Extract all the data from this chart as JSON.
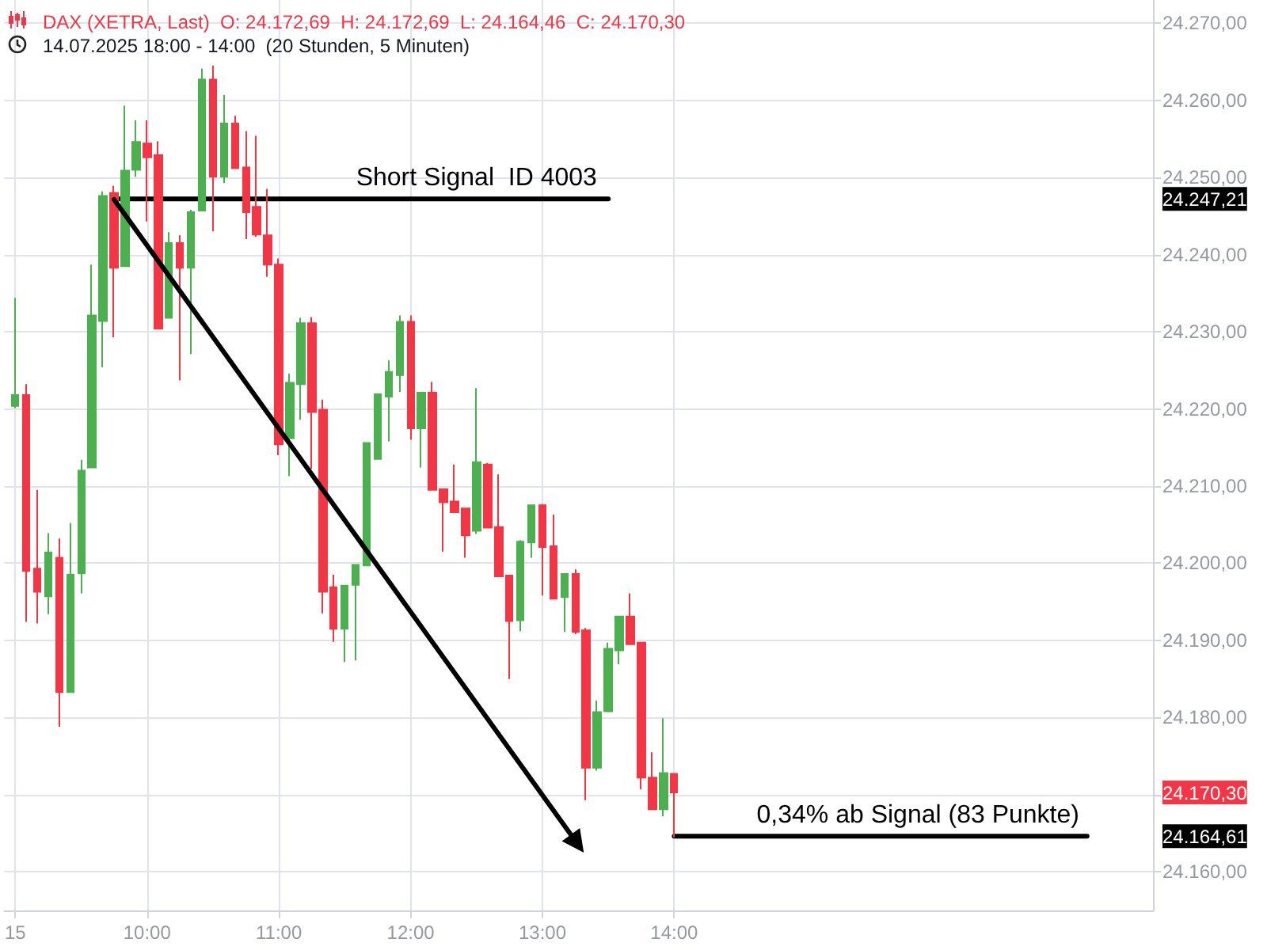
{
  "chart_data": {
    "type": "candlestick",
    "title": "DAX (XETRA, Last)  O: 24.172,69  H: 24.172,69  L: 24.164,46  C: 24.170,30",
    "subtitle": "14.07.2025 18:00 - 14:00  (20 Stunden, 5 Minuten)",
    "x": [
      "2025-07-15T09:00",
      "2025-07-15T09:05",
      "2025-07-15T09:10",
      "2025-07-15T09:15",
      "2025-07-15T09:20",
      "2025-07-15T09:25",
      "2025-07-15T09:30",
      "2025-07-15T09:35",
      "2025-07-15T09:40",
      "2025-07-15T09:45",
      "2025-07-15T09:50",
      "2025-07-15T09:55",
      "2025-07-15T10:00",
      "2025-07-15T10:05",
      "2025-07-15T10:10",
      "2025-07-15T10:15",
      "2025-07-15T10:20",
      "2025-07-15T10:25",
      "2025-07-15T10:30",
      "2025-07-15T10:35",
      "2025-07-15T10:40",
      "2025-07-15T10:45",
      "2025-07-15T10:50",
      "2025-07-15T10:55",
      "2025-07-15T11:00",
      "2025-07-15T11:05",
      "2025-07-15T11:10",
      "2025-07-15T11:15",
      "2025-07-15T11:20",
      "2025-07-15T11:25",
      "2025-07-15T11:30",
      "2025-07-15T11:35",
      "2025-07-15T11:40",
      "2025-07-15T11:45",
      "2025-07-15T11:50",
      "2025-07-15T11:55",
      "2025-07-15T12:00",
      "2025-07-15T12:05",
      "2025-07-15T12:10",
      "2025-07-15T12:15",
      "2025-07-15T12:20",
      "2025-07-15T12:25",
      "2025-07-15T12:30",
      "2025-07-15T12:35",
      "2025-07-15T12:40",
      "2025-07-15T12:45",
      "2025-07-15T12:50",
      "2025-07-15T12:55",
      "2025-07-15T13:00",
      "2025-07-15T13:05",
      "2025-07-15T13:10",
      "2025-07-15T13:15",
      "2025-07-15T13:20",
      "2025-07-15T13:25",
      "2025-07-15T13:30",
      "2025-07-15T13:35",
      "2025-07-15T13:40",
      "2025-07-15T13:45",
      "2025-07-15T13:50",
      "2025-07-15T13:55",
      "2025-07-15T14:00"
    ],
    "ohlc": [
      [
        24220.4,
        24234.4,
        24220.1,
        24221.8
      ],
      [
        24221.8,
        24223.2,
        24192.4,
        24199.0
      ],
      [
        24199.3,
        24209.5,
        24192.2,
        24196.3
      ],
      [
        24195.7,
        24203.9,
        24193.4,
        24201.4
      ],
      [
        24200.7,
        24203.2,
        24178.8,
        24183.3
      ],
      [
        24183.3,
        24205.2,
        24183.3,
        24198.5
      ],
      [
        24198.7,
        24213.4,
        24196.1,
        24212.0
      ],
      [
        24212.4,
        24238.7,
        24212.4,
        24232.1
      ],
      [
        24231.4,
        24248.2,
        24225.4,
        24247.6
      ],
      [
        24248.0,
        24248.9,
        24229.3,
        24238.3
      ],
      [
        24238.5,
        24259.3,
        24238.5,
        24250.9
      ],
      [
        24251.0,
        24257.4,
        24250.1,
        24254.6
      ],
      [
        24254.4,
        24257.4,
        24244.3,
        24252.6
      ],
      [
        24252.9,
        24254.7,
        24230.4,
        24230.4
      ],
      [
        24231.8,
        24242.9,
        24231.8,
        24241.5
      ],
      [
        24241.5,
        24242.5,
        24223.7,
        24238.3
      ],
      [
        24238.3,
        24245.8,
        24227.1,
        24245.5
      ],
      [
        24245.7,
        24264.1,
        24245.7,
        24262.7
      ],
      [
        24262.7,
        24264.5,
        24243.0,
        24250.1
      ],
      [
        24250.1,
        24260.7,
        24249.3,
        24257.0
      ],
      [
        24257.0,
        24258.0,
        24251.2,
        24251.2
      ],
      [
        24251.3,
        24256.0,
        24242.0,
        24245.5
      ],
      [
        24246.2,
        24255.4,
        24242.3,
        24242.6
      ],
      [
        24242.5,
        24248.5,
        24237.1,
        24238.7
      ],
      [
        24238.7,
        24239.5,
        24214.0,
        24215.4
      ],
      [
        24216.2,
        24224.6,
        24211.3,
        24223.4
      ],
      [
        24223.2,
        24231.8,
        24218.6,
        24231.1
      ],
      [
        24231.1,
        24231.9,
        24212.2,
        24219.6
      ],
      [
        24219.9,
        24221.2,
        24193.5,
        24196.3
      ],
      [
        24196.9,
        24198.5,
        24189.8,
        24191.5
      ],
      [
        24191.5,
        24197.1,
        24187.2,
        24197.1
      ],
      [
        24197.2,
        24199.8,
        24187.4,
        24199.8
      ],
      [
        24199.7,
        24215.7,
        24199.7,
        24215.6
      ],
      [
        24213.5,
        24222.0,
        24213.4,
        24221.9
      ],
      [
        24221.6,
        24226.3,
        24215.8,
        24224.8
      ],
      [
        24224.4,
        24232.1,
        24222.2,
        24231.3
      ],
      [
        24231.3,
        24232.1,
        24216.0,
        24217.5
      ],
      [
        24217.5,
        24222.2,
        24212.4,
        24222.1
      ],
      [
        24222.1,
        24223.5,
        24209.5,
        24209.5
      ],
      [
        24209.6,
        24209.6,
        24201.5,
        24207.9
      ],
      [
        24208.0,
        24212.8,
        24206.6,
        24206.6
      ],
      [
        24207.1,
        24207.1,
        24200.7,
        24203.6
      ],
      [
        24204.2,
        24222.7,
        24203.8,
        24213.1
      ],
      [
        24212.8,
        24213.0,
        24204.6,
        24204.6
      ],
      [
        24204.7,
        24211.5,
        24198.3,
        24198.3
      ],
      [
        24198.4,
        24198.4,
        24185.0,
        24192.5
      ],
      [
        24192.6,
        24203.0,
        24191.2,
        24202.8
      ],
      [
        24202.7,
        24207.5,
        24200.7,
        24207.5
      ],
      [
        24207.5,
        24207.7,
        24195.8,
        24202.1
      ],
      [
        24202.2,
        24206.3,
        24195.4,
        24195.4
      ],
      [
        24195.6,
        24198.6,
        24191.1,
        24198.6
      ],
      [
        24198.6,
        24199.2,
        24190.8,
        24191.1
      ],
      [
        24191.3,
        24191.6,
        24169.3,
        24173.5
      ],
      [
        24173.5,
        24182.2,
        24173.1,
        24180.7
      ],
      [
        24180.8,
        24189.7,
        24180.8,
        24188.9
      ],
      [
        24188.7,
        24193.1,
        24186.9,
        24193.1
      ],
      [
        24193.1,
        24196.1,
        24189.5,
        24189.5
      ],
      [
        24189.7,
        24189.7,
        24170.7,
        24172.2
      ],
      [
        24172.2,
        24175.5,
        24168.1,
        24168.1
      ],
      [
        24168.1,
        24179.9,
        24167.2,
        24172.8
      ],
      [
        24172.69,
        24172.69,
        24164.46,
        24170.3
      ]
    ],
    "colors": [
      "#4caf50",
      "#f23645",
      "#f23645",
      "#4caf50",
      "#f23645",
      "#4caf50",
      "#4caf50",
      "#4caf50",
      "#4caf50",
      "#f23645",
      "#4caf50",
      "#4caf50",
      "#f23645",
      "#f23645",
      "#4caf50",
      "#f23645",
      "#4caf50",
      "#4caf50",
      "#f23645",
      "#4caf50",
      "#f23645",
      "#f23645",
      "#f23645",
      "#f23645",
      "#f23645",
      "#4caf50",
      "#4caf50",
      "#f23645",
      "#f23645",
      "#f23645",
      "#4caf50",
      "#4caf50",
      "#4caf50",
      "#4caf50",
      "#4caf50",
      "#4caf50",
      "#f23645",
      "#4caf50",
      "#f23645",
      "#f23645",
      "#f23645",
      "#f23645",
      "#4caf50",
      "#f23645",
      "#f23645",
      "#f23645",
      "#4caf50",
      "#4caf50",
      "#f23645",
      "#f23645",
      "#4caf50",
      "#f23645",
      "#f23645",
      "#4caf50",
      "#4caf50",
      "#4caf50",
      "#f23645",
      "#f23645",
      "#f23645",
      "#4caf50",
      "#f23645"
    ],
    "series": [
      {
        "type": "line",
        "color": "#000000",
        "x": [
          "2025-07-15T09:45",
          "2025-07-15T13:30"
        ],
        "values": [
          24247.21,
          24247.21
        ]
      },
      {
        "type": "line",
        "color": "#000000",
        "x": [
          "2025-07-15T14:00",
          "2025-07-15T17:08"
        ],
        "values": [
          24164.61,
          24164.61
        ]
      }
    ],
    "annotations": [
      {
        "text": "Short Signal  ID 4003",
        "x": "2025-07-15T12:30",
        "y": 24247.21
      },
      {
        "text": "0,34% ab Signal (83 Punkte)",
        "x": "2025-07-15T15:51",
        "y": 24164.61
      }
    ],
    "xlim": [
      "2025-07-15T08:55",
      "2025-07-15T17:38"
    ],
    "xticks": [
      {
        "value": "2025-07-15T09:00",
        "label": "15"
      },
      {
        "value": "2025-07-15T10:00",
        "label": "10:00"
      },
      {
        "value": "2025-07-15T11:00",
        "label": "11:00"
      },
      {
        "value": "2025-07-15T12:00",
        "label": "12:00"
      },
      {
        "value": "2025-07-15T13:00",
        "label": "13:00"
      },
      {
        "value": "2025-07-15T14:00",
        "label": "14:00"
      }
    ],
    "ylim": [
      24155,
      24273
    ],
    "yticks": [
      {
        "value": 24160,
        "label": "24.160,00"
      },
      {
        "value": 24164.61,
        "label": "24.164,61"
      },
      {
        "value": 24170,
        "label": null
      },
      {
        "value": 24170.3,
        "label": "24.170,30"
      },
      {
        "value": 24180,
        "label": "24.180,00"
      },
      {
        "value": 24190,
        "label": "24.190,00"
      },
      {
        "value": 24200,
        "label": "24.200,00"
      },
      {
        "value": 24210,
        "label": "24.210,00"
      },
      {
        "value": 24220,
        "label": "24.220,00"
      },
      {
        "value": 24230,
        "label": "24.230,00"
      },
      {
        "value": 24240,
        "label": "24.240,00"
      },
      {
        "value": 24247.21,
        "label": "24.247,21"
      },
      {
        "value": 24250,
        "label": "24.250,00"
      },
      {
        "value": 24260,
        "label": "24.260,00"
      },
      {
        "value": 24270,
        "label": "24.270,00"
      }
    ],
    "grid": true
  }
}
